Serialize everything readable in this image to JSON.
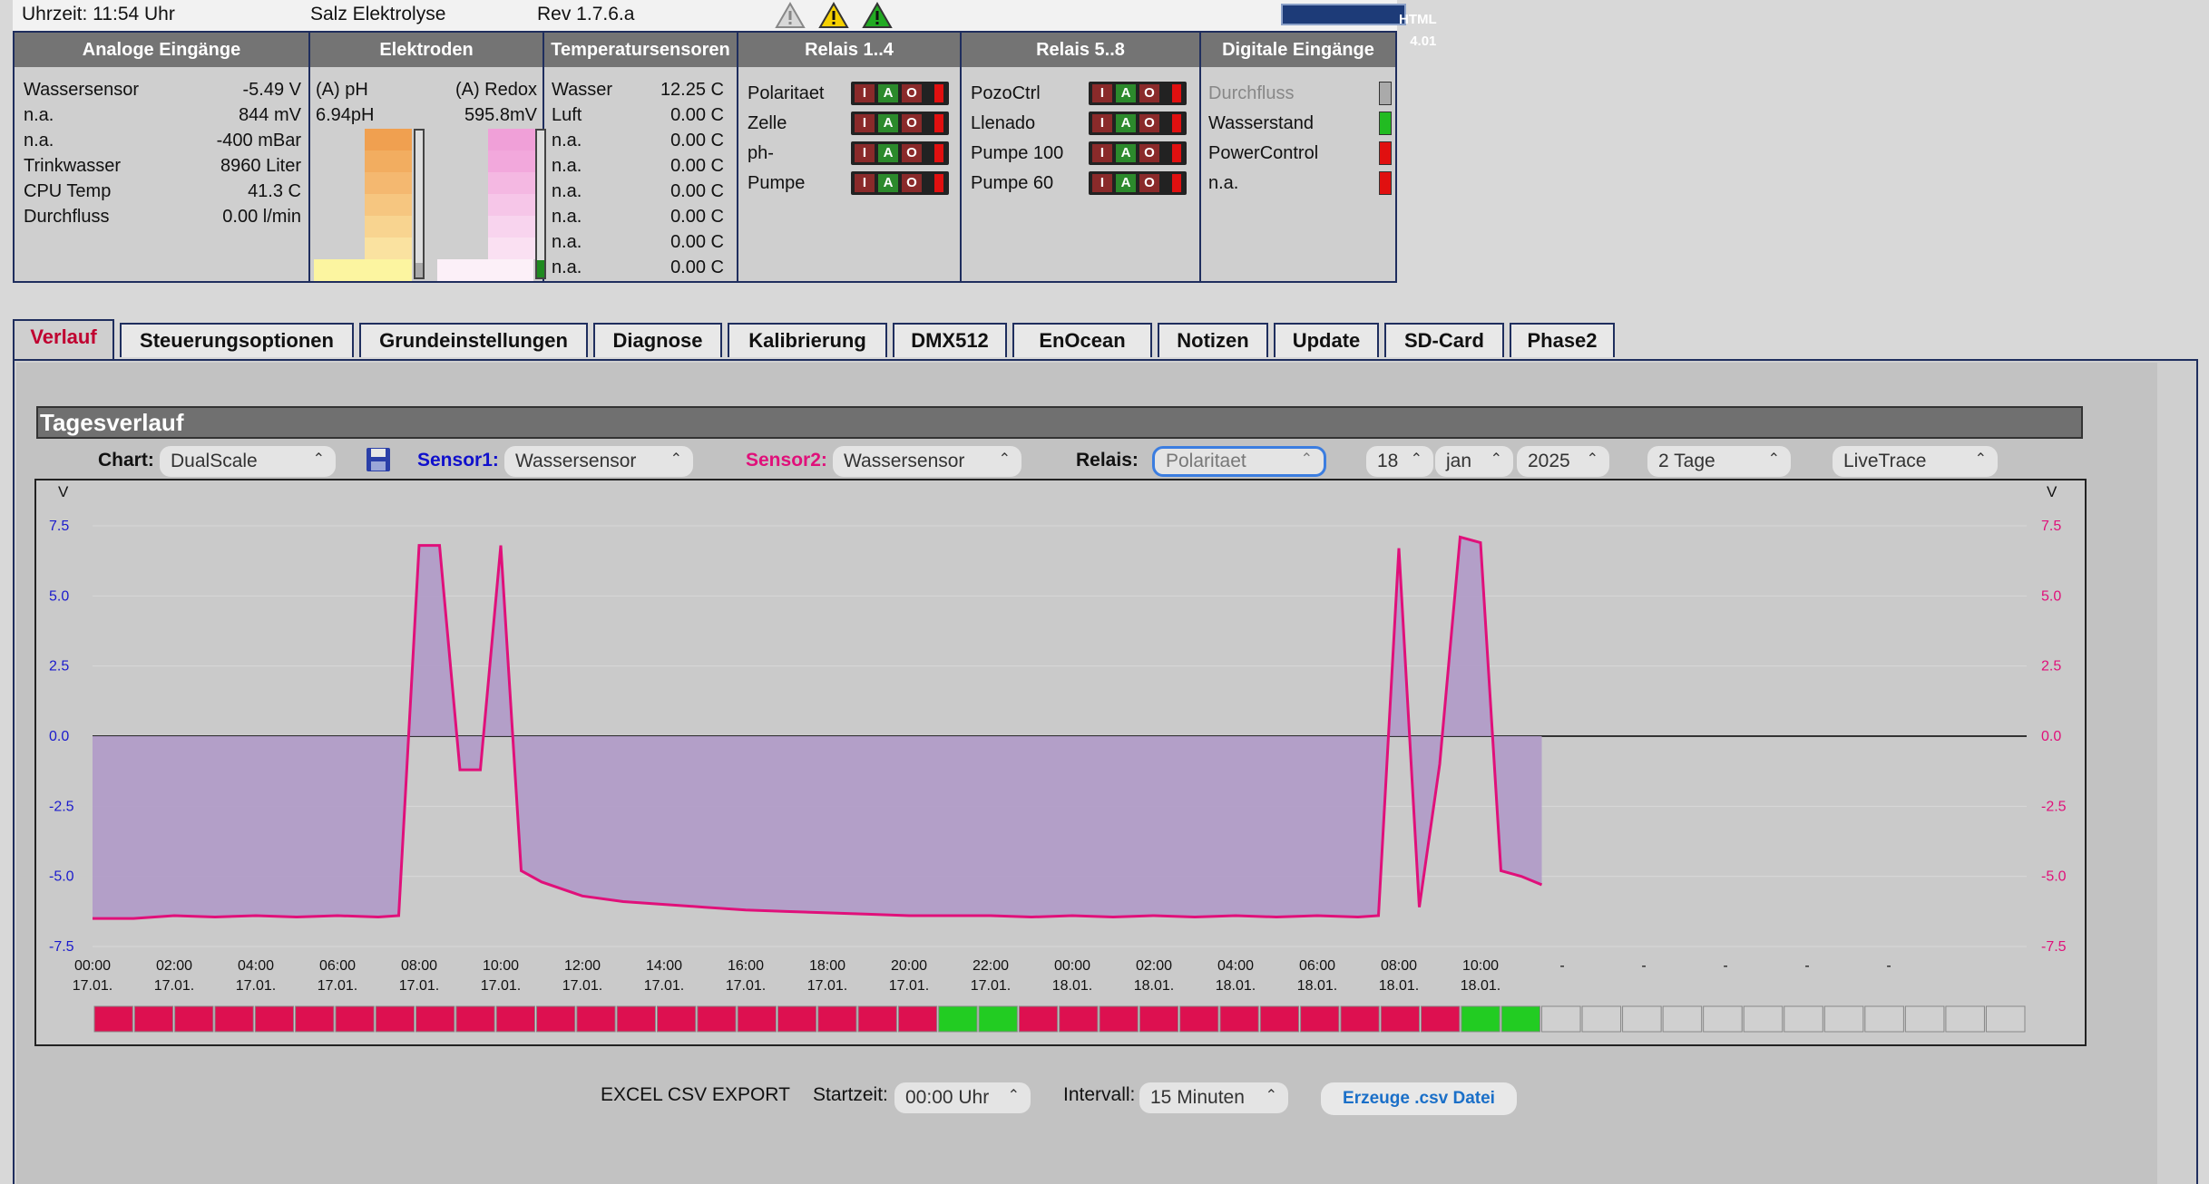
{
  "topbar": {
    "time": "Uhrzeit: 11:54 Uhr",
    "app": "Salz Elektrolyse",
    "rev": "Rev 1.7.6.a",
    "validator": "HTML 4.01"
  },
  "analog": {
    "header": "Analoge Eingänge",
    "rows": [
      {
        "label": "Wassersensor",
        "value": "-5.49 V"
      },
      {
        "label": "n.a.",
        "value": "844 mV"
      },
      {
        "label": "n.a.",
        "value": "-400 mBar"
      },
      {
        "label": "Trinkwasser",
        "value": "8960 Liter"
      },
      {
        "label": "CPU Temp",
        "value": "41.3 C"
      },
      {
        "label": "Durchfluss",
        "value": "0.00 l/min"
      }
    ]
  },
  "elektroden": {
    "header": "Elektroden",
    "ph_label": "(A) pH",
    "ph_value": "6.94pH",
    "redox_label": "(A) Redox",
    "redox_value": "595.8mV",
    "ph_level": 0.1,
    "redox_level": 0.12
  },
  "temp": {
    "header": "Temperatursensoren",
    "rows": [
      {
        "label": "Wasser",
        "value": "12.25 C"
      },
      {
        "label": "Luft",
        "value": "0.00 C"
      },
      {
        "label": "n.a.",
        "value": "0.00 C"
      },
      {
        "label": "n.a.",
        "value": "0.00 C"
      },
      {
        "label": "n.a.",
        "value": "0.00 C"
      },
      {
        "label": "n.a.",
        "value": "0.00 C"
      },
      {
        "label": "n.a.",
        "value": "0.00 C"
      },
      {
        "label": "n.a.",
        "value": "0.00 C"
      }
    ]
  },
  "relais14": {
    "header": "Relais 1..4",
    "rows": [
      {
        "label": "Polaritaet"
      },
      {
        "label": "Zelle"
      },
      {
        "label": "ph-"
      },
      {
        "label": "Pumpe"
      }
    ]
  },
  "relais58": {
    "header": "Relais 5..8",
    "rows": [
      {
        "label": "PozoCtrl"
      },
      {
        "label": "Llenado"
      },
      {
        "label": "Pumpe 100"
      },
      {
        "label": "Pumpe 60"
      }
    ]
  },
  "relay_buttons": {
    "i": "I",
    "a": "A",
    "o": "O"
  },
  "digital": {
    "header": "Digitale Eingänge",
    "rows": [
      {
        "label": "Durchfluss",
        "state": "#aaaaaa"
      },
      {
        "label": "Wasserstand",
        "state": "#22bb22"
      },
      {
        "label": "PowerControl",
        "state": "#e01010"
      },
      {
        "label": "n.a.",
        "state": "#e01010"
      }
    ]
  },
  "tabs": [
    {
      "label": "Verlauf"
    },
    {
      "label": "Steuerungsoptionen"
    },
    {
      "label": "Grundeinstellungen"
    },
    {
      "label": "Diagnose"
    },
    {
      "label": "Kalibrierung"
    },
    {
      "label": "DMX512"
    },
    {
      "label": "EnOcean"
    },
    {
      "label": "Notizen"
    },
    {
      "label": "Update"
    },
    {
      "label": "SD-Card"
    },
    {
      "label": "Phase2"
    }
  ],
  "controls": {
    "title": "Tagesverlauf",
    "chart_label": "Chart:",
    "chart_value": "DualScale",
    "sensor1_label": "Sensor1:",
    "sensor1_value": "Wassersensor",
    "sensor2_label": "Sensor2:",
    "sensor2_value": "Wassersensor",
    "relais_label": "Relais:",
    "relais_value": "Polaritaet",
    "day": "18",
    "month": "jan",
    "year": "2025",
    "range": "2 Tage",
    "mode": "LiveTrace"
  },
  "chart_data": {
    "type": "area",
    "ylabel_left": "V",
    "ylabel_right": "V",
    "ylim": [
      -7.5,
      7.5
    ],
    "yticks": [
      "7.5",
      "5.0",
      "2.5",
      "0.0",
      "-2.5",
      "-5.0",
      "-7.5"
    ],
    "xticks": [
      {
        "time": "00:00",
        "date": "17.01."
      },
      {
        "time": "02:00",
        "date": "17.01."
      },
      {
        "time": "04:00",
        "date": "17.01."
      },
      {
        "time": "06:00",
        "date": "17.01."
      },
      {
        "time": "08:00",
        "date": "17.01."
      },
      {
        "time": "10:00",
        "date": "17.01."
      },
      {
        "time": "12:00",
        "date": "17.01."
      },
      {
        "time": "14:00",
        "date": "17.01."
      },
      {
        "time": "16:00",
        "date": "17.01."
      },
      {
        "time": "18:00",
        "date": "17.01."
      },
      {
        "time": "20:00",
        "date": "17.01."
      },
      {
        "time": "22:00",
        "date": "17.01."
      },
      {
        "time": "00:00",
        "date": "18.01."
      },
      {
        "time": "02:00",
        "date": "18.01."
      },
      {
        "time": "04:00",
        "date": "18.01."
      },
      {
        "time": "06:00",
        "date": "18.01."
      },
      {
        "time": "08:00",
        "date": "18.01."
      },
      {
        "time": "10:00",
        "date": "18.01."
      },
      {
        "time": "-",
        "date": ""
      },
      {
        "time": "-",
        "date": ""
      },
      {
        "time": "-",
        "date": ""
      },
      {
        "time": "-",
        "date": ""
      },
      {
        "time": "-",
        "date": ""
      }
    ],
    "series": [
      {
        "color": "#e0107a",
        "x_hours": [
          0,
          1,
          2,
          3,
          4,
          5,
          6,
          7,
          7.5,
          8,
          8.5,
          9,
          9.5,
          10,
          10.5,
          11,
          12,
          13,
          14,
          15,
          16,
          17,
          18,
          19,
          20,
          21,
          22,
          23,
          24,
          25,
          26,
          27,
          28,
          29,
          30,
          31,
          31.5,
          32,
          32.5,
          33,
          33.5,
          34,
          34.5,
          35,
          35.5
        ],
        "values": [
          -6.5,
          -6.5,
          -6.4,
          -6.45,
          -6.4,
          -6.45,
          -6.4,
          -6.45,
          -6.4,
          6.8,
          6.8,
          -1.2,
          -1.2,
          6.8,
          -4.8,
          -5.2,
          -5.7,
          -5.9,
          -6.0,
          -6.1,
          -6.2,
          -6.25,
          -6.3,
          -6.35,
          -6.4,
          -6.4,
          -6.4,
          -6.45,
          -6.4,
          -6.45,
          -6.4,
          -6.45,
          -6.4,
          -6.45,
          -6.4,
          -6.45,
          -6.4,
          6.7,
          -6.1,
          -1.0,
          7.1,
          6.9,
          -4.8,
          -5.0,
          -5.3
        ]
      }
    ],
    "relay_strip": {
      "slots": 48,
      "filled": 36,
      "green_slots": [
        21,
        22,
        34,
        35
      ]
    },
    "grid": true
  },
  "export": {
    "title": "EXCEL CSV EXPORT",
    "start_label": "Startzeit:",
    "start_value": "00:00 Uhr",
    "interval_label": "Intervall:",
    "interval_value": "15 Minuten",
    "button": "Erzeuge .csv Datei"
  }
}
